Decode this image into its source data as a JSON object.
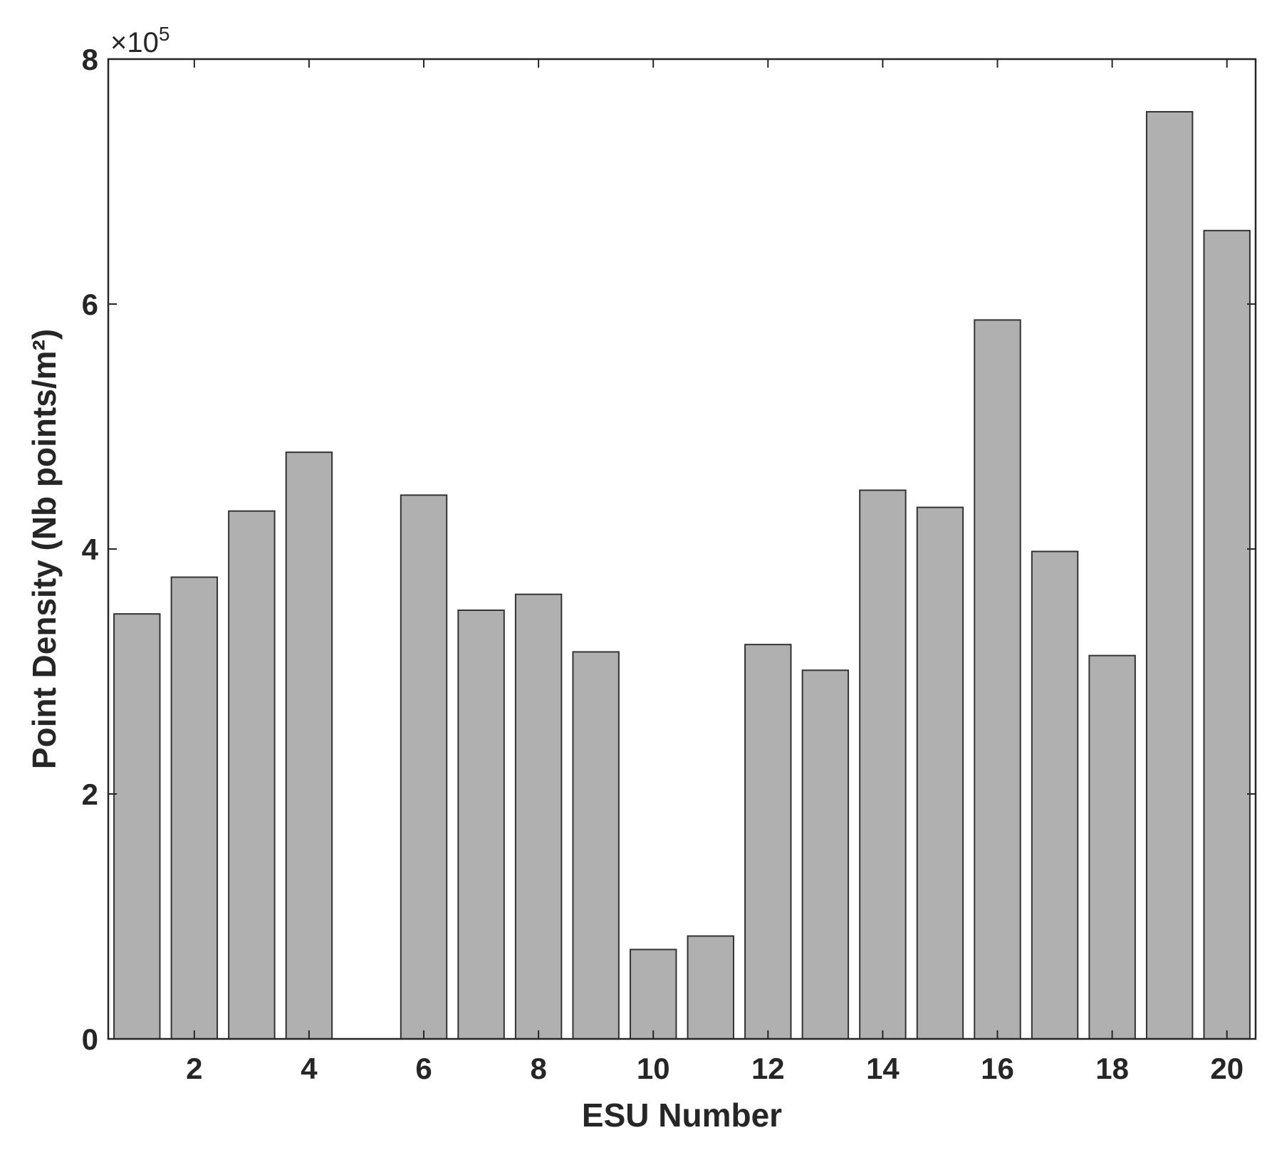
{
  "chart_data": {
    "type": "bar",
    "categories": [
      1,
      2,
      3,
      4,
      5,
      6,
      7,
      8,
      9,
      10,
      11,
      12,
      13,
      14,
      15,
      16,
      17,
      18,
      19,
      20
    ],
    "values": [
      347000,
      377000,
      431000,
      479000,
      0,
      444000,
      350000,
      363000,
      316000,
      73000,
      84000,
      322000,
      301000,
      448000,
      434000,
      587000,
      398000,
      313000,
      757000,
      660000
    ],
    "xlabel": "ESU Number",
    "ylabel": "Point Density (Nb points/m²)",
    "xlim": [
      0.5,
      20.5
    ],
    "ylim": [
      0,
      800000
    ],
    "xticks": [
      2,
      4,
      6,
      8,
      10,
      12,
      14,
      16,
      18,
      20
    ],
    "yticks": [
      0,
      2,
      4,
      6,
      8
    ],
    "y_exponent_prefix": "×10",
    "y_exponent_power": "5",
    "bar_color": "#b0b0b0",
    "bar_edge_color": "#333333",
    "grid": false,
    "legend": "none"
  }
}
